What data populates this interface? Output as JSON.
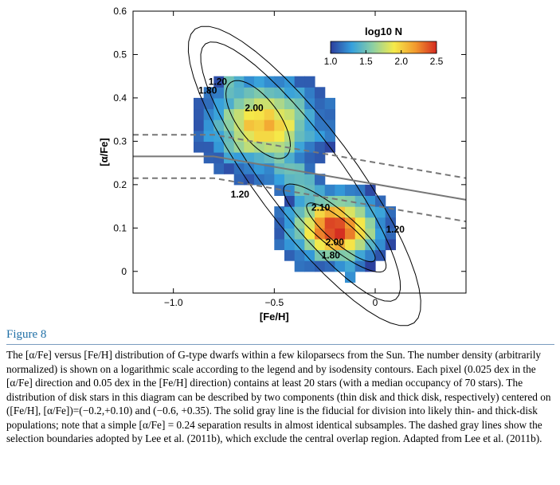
{
  "chart_data": {
    "type": "heatmap",
    "xlabel": "[Fe/H]",
    "ylabel": "[α/Fe]",
    "xlim": [
      -1.2,
      0.45
    ],
    "ylim": [
      -0.05,
      0.6
    ],
    "xticks": [
      -1.0,
      -0.5,
      0.0
    ],
    "xtick_labels": [
      "−1.0",
      "−0.5",
      "0"
    ],
    "yticks": [
      0,
      0.1,
      0.2,
      0.3,
      0.4,
      0.5,
      0.6
    ],
    "ytick_labels": [
      "0",
      "0.1",
      "0.2",
      "0.3",
      "0.4",
      "0.5",
      "0.6"
    ],
    "colorbar": {
      "title": "log10 N",
      "ticks": [
        "1.0",
        "1.5",
        "2.0",
        "2.5"
      ],
      "range": [
        1.0,
        2.5
      ],
      "colors": [
        "#2c3d9c",
        "#35a0dd",
        "#8dd0a3",
        "#f5ea4a",
        "#f29a2e",
        "#d42a20"
      ]
    },
    "density_peaks": [
      {
        "feh": -0.55,
        "afe": 0.34,
        "log10N": 2.1
      },
      {
        "feh": -0.2,
        "afe": 0.1,
        "log10N": 2.5
      }
    ],
    "contour_labels": [
      {
        "text": "1.20",
        "feh": -0.78,
        "afe": 0.43
      },
      {
        "text": "1.80",
        "feh": -0.83,
        "afe": 0.41
      },
      {
        "text": "2.00",
        "feh": -0.6,
        "afe": 0.37
      },
      {
        "text": "1.20",
        "feh": -0.67,
        "afe": 0.17
      },
      {
        "text": "2.10",
        "feh": -0.27,
        "afe": 0.14
      },
      {
        "text": "2.00",
        "feh": -0.2,
        "afe": 0.06
      },
      {
        "text": "1.80",
        "feh": -0.22,
        "afe": 0.03
      },
      {
        "text": "1.20",
        "feh": 0.1,
        "afe": 0.09
      }
    ],
    "fiducial_line": {
      "points": [
        [
          -1.2,
          0.265
        ],
        [
          -0.8,
          0.265
        ],
        [
          0.45,
          0.165
        ]
      ],
      "style": "solid gray"
    },
    "selection_upper": {
      "points": [
        [
          -1.2,
          0.315
        ],
        [
          -0.8,
          0.315
        ],
        [
          0.45,
          0.215
        ]
      ],
      "style": "dashed gray"
    },
    "selection_lower": {
      "points": [
        [
          -1.2,
          0.215
        ],
        [
          -0.8,
          0.215
        ],
        [
          0.45,
          0.115
        ]
      ],
      "style": "dashed gray"
    }
  },
  "figure": {
    "title": "Figure 8",
    "caption_text": "The [α/Fe] versus [Fe/H] distribution of G-type dwarfs within a few kiloparsecs from the Sun. The number density (arbitrarily normalized) is shown on a logarithmic scale according to the legend and by isodensity contours. Each pixel (0.025 dex in the [α/Fe] direction and 0.05 dex in the [Fe/H] direction) contains at least 20 stars (with a median occupancy of 70 stars). The distribution of disk stars in this diagram can be described by two components (thin disk and thick disk, respectively) centered on ([Fe/H], [α/Fe])=(−0.2,+0.10) and (−0.6, +0.35). The solid gray line is the fiducial for division into likely thin- and thick-disk populations; note that a simple [α/Fe] = 0.24 separation results in almost identical subsamples. The dashed gray lines show the selection boundaries adopted by Lee et al. (2011b), which exclude the central overlap region. Adapted from Lee et al. (2011b)."
  }
}
